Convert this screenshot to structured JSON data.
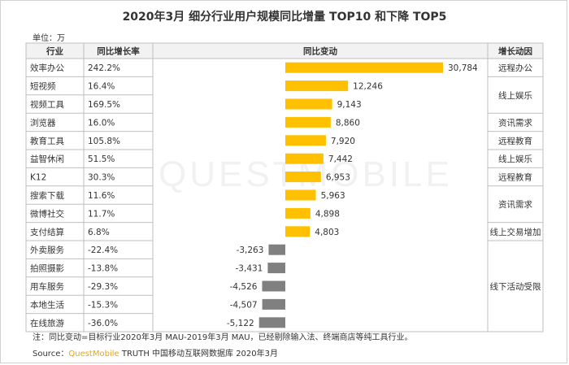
{
  "title": "2020年3月 细分行业用户规模同比增量 TOP10 和下降 TOP5",
  "unit": "单位：万",
  "headers": {
    "industry": "行业",
    "rate": "同比增长率",
    "change": "同比变动",
    "driver": "增长动因"
  },
  "note": "注：同比变动=目标行业2020年3月 MAU-2019年3月 MAU，已经剔除输入法、终端商店等纯工具行业。",
  "source": {
    "label": "Source：",
    "brand": "QuestMobile",
    "rest": " TRUTH 中国移动互联网数据库 2020年3月"
  },
  "watermark": "QUESTMOBILE",
  "colors": {
    "positive": "#ffc000",
    "negative": "#808080",
    "grid": "#bfbfbf"
  },
  "chart_data": {
    "type": "bar",
    "categories": [
      "效率办公",
      "短视频",
      "视频工具",
      "浏览器",
      "教育工具",
      "益智休闲",
      "K12",
      "搜索下载",
      "微博社交",
      "支付结算",
      "外卖服务",
      "拍照摄影",
      "用车服务",
      "本地生活",
      "在线旅游"
    ],
    "rates": [
      "242.2%",
      "16.4%",
      "169.5%",
      "16.0%",
      "105.8%",
      "51.5%",
      "30.3%",
      "11.6%",
      "11.7%",
      "6.8%",
      "-22.4%",
      "-13.8%",
      "-29.3%",
      "-15.3%",
      "-36.0%"
    ],
    "values": [
      30784,
      12246,
      9143,
      8860,
      7920,
      7442,
      6953,
      5963,
      4898,
      4803,
      -3263,
      -3431,
      -4526,
      -4507,
      -5122
    ],
    "value_labels": [
      "30,784",
      "12,246",
      "9,143",
      "8,860",
      "7,920",
      "7,442",
      "6,953",
      "5,963",
      "4,898",
      "4,803",
      "-3,263",
      "-3,431",
      "-4,526",
      "-4,507",
      "-5,122"
    ],
    "drivers": [
      {
        "label": "远程办公",
        "start": 0,
        "span": 1
      },
      {
        "label": "线上娱乐",
        "start": 1,
        "span": 2
      },
      {
        "label": "资讯需求",
        "start": 3,
        "span": 1
      },
      {
        "label": "远程教育",
        "start": 4,
        "span": 1
      },
      {
        "label": "线上娱乐",
        "start": 5,
        "span": 1
      },
      {
        "label": "远程教育",
        "start": 6,
        "span": 1
      },
      {
        "label": "资讯需求",
        "start": 7,
        "span": 2
      },
      {
        "label": "线上交易增加",
        "start": 9,
        "span": 1
      },
      {
        "label": "线下活动受限",
        "start": 10,
        "span": 5
      }
    ]
  }
}
